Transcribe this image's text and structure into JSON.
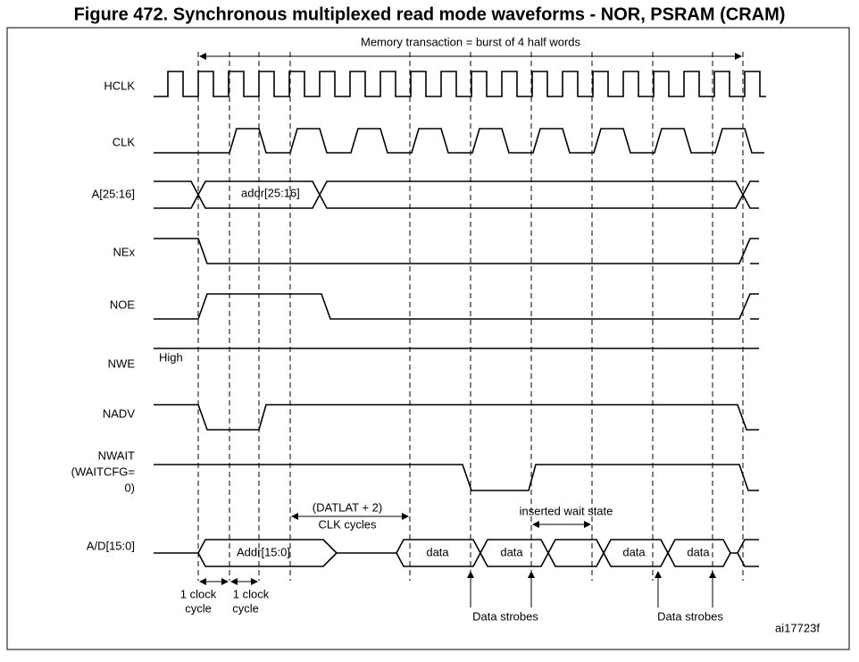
{
  "title": "Figure 472. Synchronous multiplexed read mode waveforms - NOR, PSRAM (CRAM)",
  "transaction": "Memory transaction = burst of 4 half words",
  "signals": [
    {
      "label": "HCLK"
    },
    {
      "label": "CLK"
    },
    {
      "label": "A[25:16]",
      "bus_text": "addr[25:16]"
    },
    {
      "label": "NEx"
    },
    {
      "label": "NOE"
    },
    {
      "label": "NWE",
      "state": "High"
    },
    {
      "label": "NADV"
    },
    {
      "label": [
        "NWAIT",
        "(WAITCFG=",
        "0)"
      ]
    },
    {
      "label": "A/D[15:0]",
      "bus_text": [
        "Addr[15:0]",
        "data",
        "data",
        "data",
        "data"
      ]
    }
  ],
  "latency": [
    "(DATLAT + 2)",
    "CLK cycles"
  ],
  "wait_state": "inserted wait state",
  "clock_cycle": [
    [
      "1 clock",
      "cycle"
    ],
    [
      "1 clock",
      "cycle"
    ]
  ],
  "strobes": [
    "Data strobes",
    "Data strobes"
  ],
  "figure_id": "ai17723f"
}
